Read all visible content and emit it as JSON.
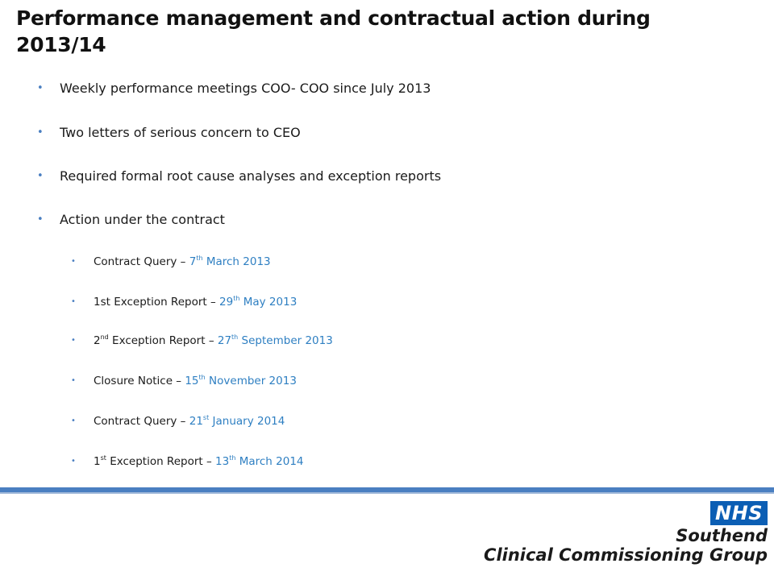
{
  "title": "Performance management and contractual action during 2013/14",
  "bullets": [
    "Weekly performance meetings  COO- COO since July 2013",
    "Two letters of serious concern  to CEO",
    "Required formal root cause analyses and exception reports",
    "Action under the contract"
  ],
  "sub_bullets": [
    {
      "pre": "Contract Query – ",
      "pre_sup": "",
      "pre_tail": "",
      "day": "7",
      "day_sup": "th",
      "rest": " March 2013"
    },
    {
      "pre": "1st Exception Report – ",
      "pre_sup": "",
      "pre_tail": "",
      "day": "29",
      "day_sup": "th",
      "rest": " May 2013"
    },
    {
      "pre": "2",
      "pre_sup": "nd",
      "pre_tail": " Exception Report – ",
      "day": "27",
      "day_sup": "th",
      "rest": " September 2013"
    },
    {
      "pre": "Closure Notice – ",
      "pre_sup": "",
      "pre_tail": "",
      "day": "15",
      "day_sup": "th",
      "rest": " November 2013"
    },
    {
      "pre": "Contract Query – ",
      "pre_sup": "",
      "pre_tail": "",
      "day": "21",
      "day_sup": "st",
      "rest": " January 2014"
    },
    {
      "pre": "1",
      "pre_sup": "st",
      "pre_tail": " Exception Report – ",
      "day": "13",
      "day_sup": "th",
      "rest": " March 2014"
    }
  ],
  "logo": {
    "badge": "NHS",
    "line1": "Southend",
    "line2": "Clinical Commissioning Group"
  },
  "colors": {
    "accent": "#4a7fc1",
    "date_text": "#2e7fc2",
    "nhs_blue": "#0b5eb4"
  }
}
